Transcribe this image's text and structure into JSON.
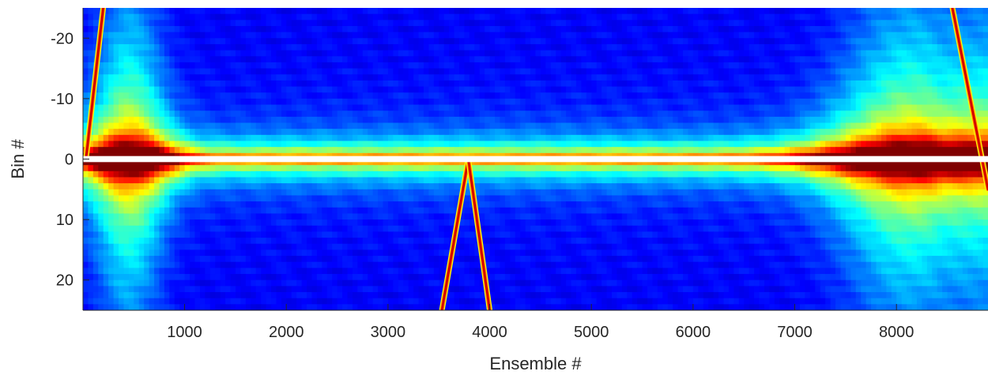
{
  "chart_data": {
    "type": "heatmap",
    "title": "",
    "xlabel": "Ensemble #",
    "ylabel": "Bin #",
    "xlim": [
      1,
      8900
    ],
    "ylim": [
      -25,
      25
    ],
    "y_reversed": true,
    "colormap": "jet",
    "x_ticks": [
      1000,
      2000,
      3000,
      4000,
      5000,
      6000,
      7000,
      8000
    ],
    "x_tick_labels": [
      "1000",
      "2000",
      "3000",
      "4000",
      "5000",
      "6000",
      "7000",
      "8000"
    ],
    "y_ticks": [
      -20,
      -10,
      0,
      10,
      20
    ],
    "y_tick_labels": [
      "-20",
      "-10",
      "0",
      "10",
      "20"
    ],
    "grid": false,
    "blank_row_y": 0,
    "description_of_field": {
      "background_level": 0.12,
      "near_zero_band_level": 0.6,
      "bright_ensemble_ranges": [
        [
          1,
          800
        ],
        [
          7300,
          8900
        ]
      ],
      "diagonal_features": [
        {
          "from": [
            3530,
            25
          ],
          "to": [
            3790,
            0
          ]
        },
        {
          "from": [
            3790,
            0
          ],
          "to": [
            4000,
            25
          ]
        },
        {
          "from": [
            30,
            0
          ],
          "to": [
            200,
            -25
          ]
        },
        {
          "from": [
            8550,
            -25
          ],
          "to": [
            8900,
            5
          ]
        }
      ]
    }
  }
}
